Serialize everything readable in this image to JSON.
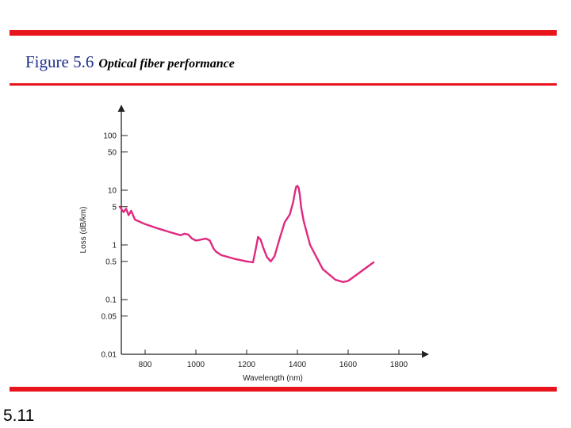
{
  "slide": {
    "figure_label": "Figure 5.6",
    "figure_caption": "Optical fiber performance",
    "page_number": "5.11",
    "accent_color": "#e8141b",
    "label_color": "#1f2e8c"
  },
  "chart_data": {
    "type": "line",
    "title": "",
    "xlabel": "Wavelength (nm)",
    "ylabel": "Loss (dB/km)",
    "y_scale": "log",
    "xlim": [
      700,
      1920
    ],
    "ylim": [
      0.01,
      200
    ],
    "x_ticks": [
      800,
      1000,
      1200,
      1400,
      1600,
      1800
    ],
    "x_tick_labels": [
      "800",
      "1000",
      "1200",
      "1400",
      "1600",
      "1800"
    ],
    "y_ticks": [
      100,
      50,
      10,
      5,
      1,
      0.5,
      0.1,
      0.05,
      0.01
    ],
    "y_tick_labels": [
      "100",
      "50",
      "10",
      "5",
      "1",
      "0.5",
      "0.1",
      "0.05",
      "0.01"
    ],
    "series": [
      {
        "name": "Loss",
        "color": "#e0287f",
        "x": [
          700,
          715,
          725,
          735,
          745,
          760,
          800,
          850,
          900,
          940,
          955,
          970,
          985,
          1000,
          1020,
          1040,
          1055,
          1070,
          1080,
          1100,
          1150,
          1200,
          1225,
          1235,
          1245,
          1255,
          1265,
          1280,
          1295,
          1310,
          1330,
          1350,
          1370,
          1383,
          1390,
          1395,
          1400,
          1405,
          1410,
          1415,
          1425,
          1450,
          1500,
          1550,
          1580,
          1600,
          1640,
          1670,
          1700
        ],
        "y": [
          5.0,
          4.0,
          4.6,
          3.5,
          4.2,
          2.9,
          2.4,
          2.0,
          1.7,
          1.5,
          1.6,
          1.55,
          1.3,
          1.2,
          1.25,
          1.3,
          1.2,
          0.85,
          0.75,
          0.65,
          0.56,
          0.5,
          0.48,
          0.8,
          1.4,
          1.25,
          0.9,
          0.6,
          0.5,
          0.62,
          1.3,
          2.6,
          3.6,
          6.0,
          9.0,
          11.5,
          12.0,
          11.0,
          8.0,
          4.8,
          2.7,
          1.0,
          0.36,
          0.23,
          0.21,
          0.22,
          0.3,
          0.38,
          0.48
        ]
      }
    ]
  }
}
